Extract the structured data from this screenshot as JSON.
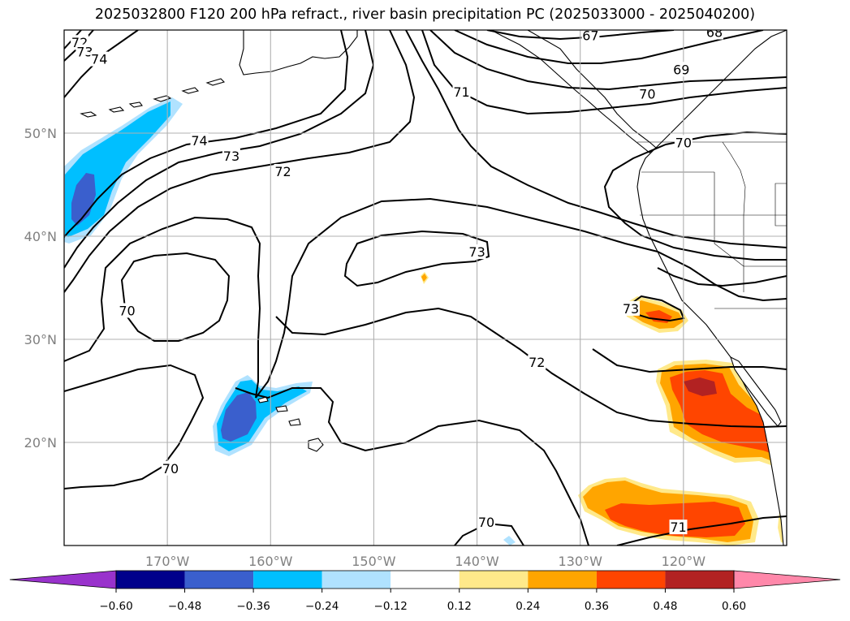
{
  "title": "2025032800 F120 200 hPa refract., river basin precipitation PC (2025033000 - 2025040200)",
  "map": {
    "projection": "cylindrical",
    "lon_range": [
      -180,
      -110
    ],
    "lat_range": [
      10,
      60
    ],
    "lon_ticks": [
      {
        "value": -170,
        "label": "170°W"
      },
      {
        "value": -160,
        "label": "160°W"
      },
      {
        "value": -150,
        "label": "150°W"
      },
      {
        "value": -140,
        "label": "140°W"
      },
      {
        "value": -130,
        "label": "130°W"
      },
      {
        "value": -120,
        "label": "120°W"
      }
    ],
    "lat_ticks": [
      {
        "value": 50,
        "label": "50°N"
      },
      {
        "value": 40,
        "label": "40°N"
      },
      {
        "value": 30,
        "label": "30°N"
      },
      {
        "value": 20,
        "label": "20°N"
      }
    ],
    "grid": true,
    "contour_labels": [
      {
        "text": "72",
        "lon": -178.5,
        "lat": 58.8
      },
      {
        "text": "73",
        "lon": -178.0,
        "lat": 57.9
      },
      {
        "text": "74",
        "lon": -176.6,
        "lat": 57.2
      },
      {
        "text": "67",
        "lon": -129.0,
        "lat": 59.5
      },
      {
        "text": "68",
        "lon": -117.0,
        "lat": 59.8
      },
      {
        "text": "69",
        "lon": -120.2,
        "lat": 56.2
      },
      {
        "text": "70",
        "lon": -123.5,
        "lat": 53.8
      },
      {
        "text": "70",
        "lon": -120.0,
        "lat": 49.1
      },
      {
        "text": "71",
        "lon": -141.5,
        "lat": 54.0
      },
      {
        "text": "74",
        "lon": -166.9,
        "lat": 49.3
      },
      {
        "text": "73",
        "lon": -163.8,
        "lat": 47.8
      },
      {
        "text": "72",
        "lon": -158.8,
        "lat": 46.3
      },
      {
        "text": "73",
        "lon": -140.0,
        "lat": 38.5
      },
      {
        "text": "70",
        "lon": -173.9,
        "lat": 32.8
      },
      {
        "text": "73",
        "lon": -125.1,
        "lat": 33.0
      },
      {
        "text": "72",
        "lon": -134.2,
        "lat": 27.8
      },
      {
        "text": "70",
        "lon": -169.7,
        "lat": 17.5
      },
      {
        "text": "70",
        "lon": -139.1,
        "lat": 12.3
      },
      {
        "text": "71",
        "lon": -120.5,
        "lat": 11.8
      }
    ]
  },
  "colorbar": {
    "ticks": [
      "−0.60",
      "−0.48",
      "−0.36",
      "−0.24",
      "−0.12",
      "0.12",
      "0.24",
      "0.36",
      "0.48",
      "0.60"
    ],
    "boundaries": [
      -0.6,
      -0.48,
      -0.36,
      -0.24,
      -0.12,
      0.12,
      0.24,
      0.36,
      0.48,
      0.6
    ],
    "colors": {
      "under": "#9932cc",
      "bins": [
        "#00008b",
        "#3a5fcd",
        "#00bfff",
        "#b0e2ff",
        "#ffffff",
        "#ffe98a",
        "#ffa500",
        "#ff4500",
        "#b22222"
      ],
      "over": "#ff88aa"
    }
  }
}
